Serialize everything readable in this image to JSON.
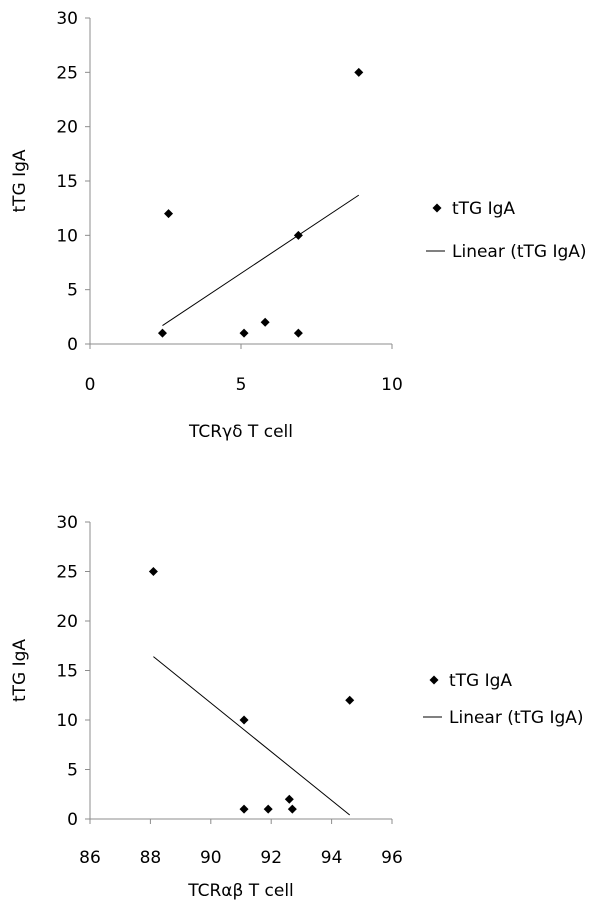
{
  "chart_data": [
    {
      "type": "scatter",
      "title": "",
      "xlabel": "TCRγδ T cell",
      "ylabel": "tTG IgA",
      "xlim": [
        0,
        10
      ],
      "ylim": [
        0,
        30
      ],
      "x_ticks": [
        0,
        5,
        10
      ],
      "y_ticks": [
        0,
        5,
        10,
        15,
        20,
        25,
        30
      ],
      "x_tick_labels": [
        "0",
        "5",
        "10"
      ],
      "y_tick_labels": [
        "0",
        "5",
        "10",
        "15",
        "20",
        "25",
        "30"
      ],
      "grid": false,
      "legend_position": "right",
      "series": [
        {
          "name": "tTG IgA",
          "marker": "diamond",
          "color": "#000000",
          "points": [
            {
              "x": 2.4,
              "y": 1
            },
            {
              "x": 2.6,
              "y": 12
            },
            {
              "x": 5.1,
              "y": 1
            },
            {
              "x": 5.8,
              "y": 2
            },
            {
              "x": 6.9,
              "y": 10
            },
            {
              "x": 6.9,
              "y": 1
            },
            {
              "x": 8.9,
              "y": 25
            }
          ]
        }
      ],
      "trendline": {
        "name": "Linear (tTG IgA)",
        "color": "#000000",
        "x_start": 2.4,
        "y_start": 1.7,
        "x_end": 8.9,
        "y_end": 13.7
      }
    },
    {
      "type": "scatter",
      "title": "",
      "xlabel": "TCRαβ T cell",
      "ylabel": "tTG IgA",
      "xlim": [
        86,
        96
      ],
      "ylim": [
        0,
        30
      ],
      "x_ticks": [
        86,
        88,
        90,
        92,
        94,
        96
      ],
      "y_ticks": [
        0,
        5,
        10,
        15,
        20,
        25,
        30
      ],
      "x_tick_labels": [
        "86",
        "88",
        "90",
        "92",
        "94",
        "96"
      ],
      "y_tick_labels": [
        "0",
        "5",
        "10",
        "15",
        "20",
        "25",
        "30"
      ],
      "grid": false,
      "legend_position": "right",
      "series": [
        {
          "name": "tTG IgA",
          "marker": "diamond",
          "color": "#000000",
          "points": [
            {
              "x": 88.1,
              "y": 25
            },
            {
              "x": 91.1,
              "y": 10
            },
            {
              "x": 91.1,
              "y": 1
            },
            {
              "x": 91.9,
              "y": 1
            },
            {
              "x": 92.6,
              "y": 2
            },
            {
              "x": 92.7,
              "y": 1
            },
            {
              "x": 94.6,
              "y": 12
            }
          ]
        }
      ],
      "trendline": {
        "name": "Linear (tTG IgA)",
        "color": "#000000",
        "x_start": 88.1,
        "y_start": 16.4,
        "x_end": 94.6,
        "y_end": 0.4
      }
    }
  ]
}
